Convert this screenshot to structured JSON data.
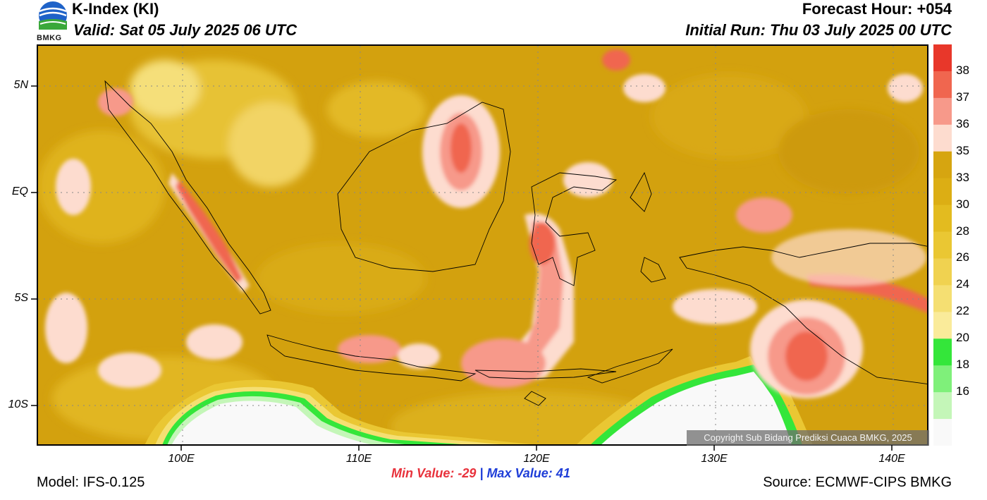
{
  "header": {
    "title": "K-Index (KI)",
    "valid": "Valid: Sat 05 July 2025 06 UTC",
    "forecast_hour": "Forecast Hour: +054",
    "initial_run": "Initial Run: Thu 03 July 2025 00 UTC"
  },
  "logo": {
    "text": "BMKG",
    "icon": "bmkg-logo"
  },
  "map": {
    "lat_labels": [
      "5N",
      "EQ",
      "5S",
      "10S"
    ],
    "lon_labels": [
      "100E",
      "110E",
      "120E",
      "130E",
      "140E"
    ],
    "copyright": "Copyright Sub Bidang Prediksi Cuaca BMKG, 2025"
  },
  "colorbar": {
    "labels": [
      "38",
      "37",
      "36",
      "35",
      "33",
      "30",
      "28",
      "26",
      "24",
      "22",
      "20",
      "18",
      "16"
    ],
    "colors": [
      "#e8372a",
      "#f0664f",
      "#f7998a",
      "#fddccf",
      "#d6a510",
      "#dcae14",
      "#e3bb1f",
      "#eac733",
      "#f0d250",
      "#f5df72",
      "#faeb9a",
      "#34e63a",
      "#7ff07a",
      "#c4f6b8",
      "#f9f9f9"
    ]
  },
  "stats": {
    "min": "Min Value: -29",
    "separator": "|",
    "max": "Max Value:  41"
  },
  "footer": {
    "model": "Model: IFS-0.125",
    "source": "Source: ECMWF-CIPS BMKG"
  }
}
